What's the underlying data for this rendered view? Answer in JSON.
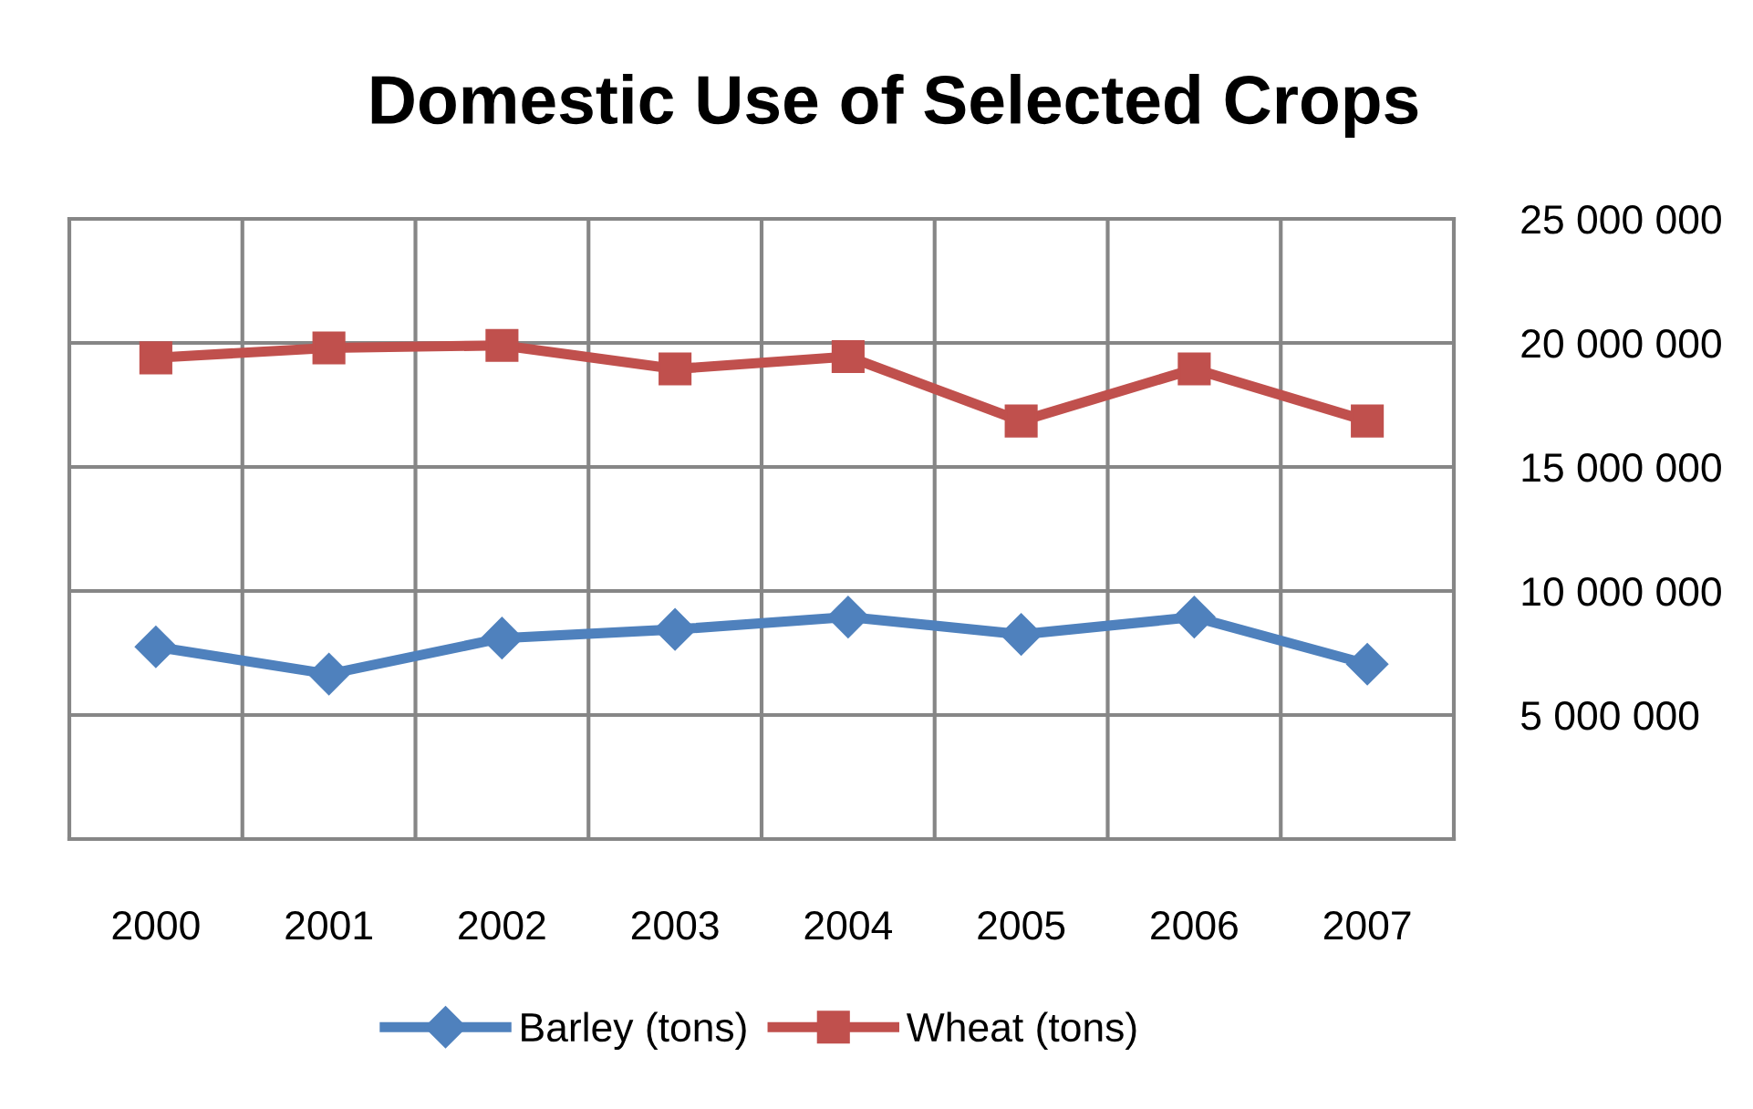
{
  "chart_data": {
    "type": "line",
    "title": "Domestic Use of Selected Crops",
    "categories": [
      "2000",
      "2001",
      "2002",
      "2003",
      "2004",
      "2005",
      "2006",
      "2007"
    ],
    "series": [
      {
        "name": "Barley (tons)",
        "color": "#4f81bd",
        "marker": "diamond",
        "values": [
          7750000,
          6650000,
          8100000,
          8450000,
          8950000,
          8250000,
          8950000,
          7050000
        ]
      },
      {
        "name": "Wheat (tons)",
        "color": "#c0504d",
        "marker": "square",
        "values": [
          19400000,
          19800000,
          19900000,
          18950000,
          19450000,
          16850000,
          18950000,
          16850000
        ]
      }
    ],
    "ylim": [
      0,
      25000000
    ],
    "yticks": [
      {
        "value": 0,
        "label": null
      },
      {
        "value": 5000000,
        "label": "5 000 000"
      },
      {
        "value": 10000000,
        "label": "10 000 000"
      },
      {
        "value": 15000000,
        "label": "15 000 000"
      },
      {
        "value": 20000000,
        "label": "20 000 000"
      },
      {
        "value": 25000000,
        "label": "25 000 000"
      }
    ],
    "grid": true,
    "legend": "bottom",
    "line_style": "solid"
  }
}
